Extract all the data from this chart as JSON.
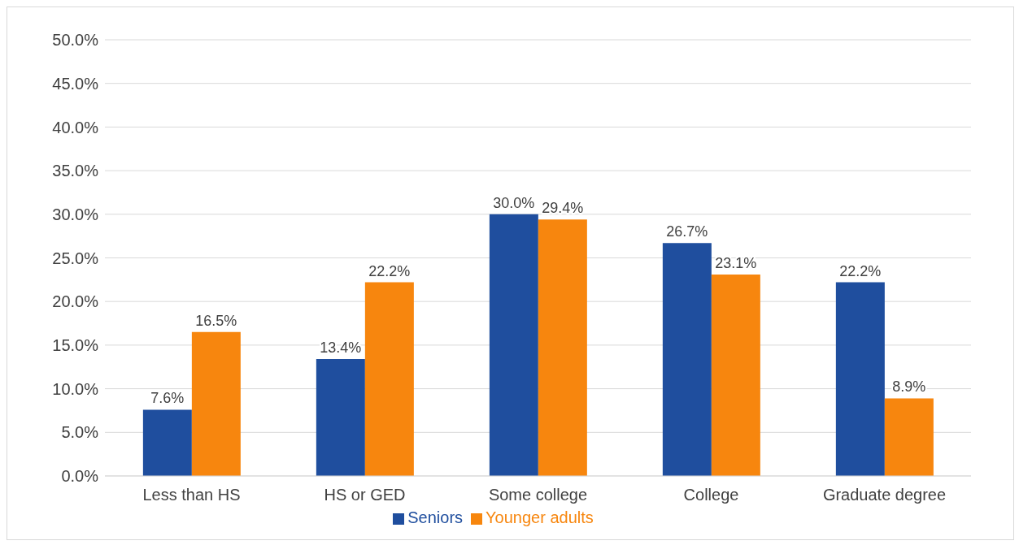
{
  "chart_data": {
    "type": "bar",
    "categories": [
      "Less than HS",
      "HS or GED",
      "Some college",
      "College",
      "Graduate degree"
    ],
    "series": [
      {
        "name": "Seniors",
        "color": "#1f4e9e",
        "values": [
          7.6,
          13.4,
          30.0,
          26.7,
          22.2
        ],
        "value_labels": [
          "7.6%",
          "13.4%",
          "30.0%",
          "26.7%",
          "22.2%"
        ]
      },
      {
        "name": "Younger adults",
        "color": "#f7860e",
        "values": [
          16.5,
          22.2,
          29.4,
          23.1,
          8.9
        ],
        "value_labels": [
          "16.5%",
          "22.2%",
          "29.4%",
          "23.1%",
          "8.9%"
        ]
      }
    ],
    "ylim": [
      0,
      50
    ],
    "yticks": [
      {
        "value": 0,
        "label": "0.0%"
      },
      {
        "value": 5,
        "label": "5.0%"
      },
      {
        "value": 10,
        "label": "10.0%"
      },
      {
        "value": 15,
        "label": "15.0%"
      },
      {
        "value": 20,
        "label": "20.0%"
      },
      {
        "value": 25,
        "label": "25.0%"
      },
      {
        "value": 30,
        "label": "30.0%"
      },
      {
        "value": 35,
        "label": "35.0%"
      },
      {
        "value": 40,
        "label": "40.0%"
      },
      {
        "value": 45,
        "label": "45.0%"
      },
      {
        "value": 50,
        "label": "50.0%"
      }
    ],
    "grid": "y",
    "legend": "bottom"
  }
}
